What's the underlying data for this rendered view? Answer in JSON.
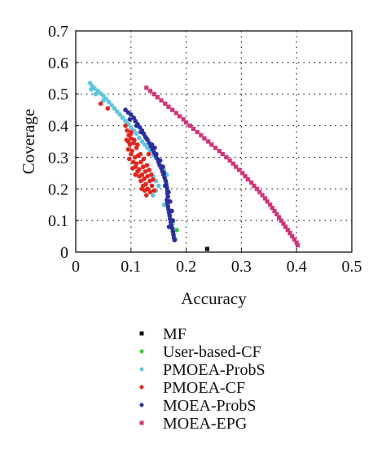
{
  "chart_data": {
    "type": "scatter",
    "title": "",
    "xlabel": "Accuracy",
    "ylabel": "Coverage",
    "xlim": [
      0,
      0.5
    ],
    "ylim": [
      0,
      0.7
    ],
    "xticks": [
      "0",
      "0.1",
      "0.2",
      "0.3",
      "0.4",
      "0.5"
    ],
    "yticks": [
      "0",
      "0.1",
      "0.2",
      "0.3",
      "0.4",
      "0.5",
      "0.6",
      "0.7"
    ],
    "grid": true,
    "legend_position": "bottom",
    "series": [
      {
        "name": "MF",
        "color": "#111111",
        "marker": "square",
        "points": [
          [
            0.238,
            0.01
          ]
        ]
      },
      {
        "name": "User-based-CF",
        "color": "#2ecc2e",
        "marker": "circle",
        "points": [
          [
            0.183,
            0.07
          ],
          [
            0.18,
            0.04
          ]
        ]
      },
      {
        "name": "PMOEA-ProbS",
        "color": "#5bc8e0",
        "marker": "circle",
        "points": [
          [
            0.026,
            0.535
          ],
          [
            0.03,
            0.525
          ],
          [
            0.034,
            0.518
          ],
          [
            0.04,
            0.51
          ],
          [
            0.045,
            0.502
          ],
          [
            0.05,
            0.495
          ],
          [
            0.055,
            0.485
          ],
          [
            0.06,
            0.475
          ],
          [
            0.065,
            0.465
          ],
          [
            0.07,
            0.455
          ],
          [
            0.075,
            0.445
          ],
          [
            0.08,
            0.435
          ],
          [
            0.085,
            0.425
          ],
          [
            0.09,
            0.415
          ],
          [
            0.095,
            0.405
          ],
          [
            0.1,
            0.395
          ],
          [
            0.105,
            0.385
          ],
          [
            0.11,
            0.375
          ],
          [
            0.115,
            0.362
          ],
          [
            0.12,
            0.35
          ],
          [
            0.125,
            0.34
          ],
          [
            0.13,
            0.33
          ],
          [
            0.135,
            0.32
          ],
          [
            0.14,
            0.308
          ],
          [
            0.145,
            0.298
          ],
          [
            0.15,
            0.285
          ],
          [
            0.155,
            0.272
          ],
          [
            0.16,
            0.26
          ],
          [
            0.165,
            0.245
          ],
          [
            0.14,
            0.24
          ],
          [
            0.145,
            0.225
          ],
          [
            0.15,
            0.21
          ],
          [
            0.145,
            0.195
          ],
          [
            0.14,
            0.18
          ],
          [
            0.16,
            0.15
          ],
          [
            0.17,
            0.12
          ],
          [
            0.175,
            0.09
          ],
          [
            0.028,
            0.515
          ],
          [
            0.036,
            0.5
          ],
          [
            0.05,
            0.48
          ]
        ]
      },
      {
        "name": "PMOEA-CF",
        "color": "#e8231c",
        "marker": "circle",
        "points": [
          [
            0.045,
            0.47
          ],
          [
            0.058,
            0.455
          ],
          [
            0.09,
            0.4
          ],
          [
            0.093,
            0.385
          ],
          [
            0.096,
            0.37
          ],
          [
            0.092,
            0.355
          ],
          [
            0.1,
            0.36
          ],
          [
            0.098,
            0.34
          ],
          [
            0.105,
            0.345
          ],
          [
            0.095,
            0.325
          ],
          [
            0.102,
            0.32
          ],
          [
            0.11,
            0.33
          ],
          [
            0.1,
            0.31
          ],
          [
            0.107,
            0.3
          ],
          [
            0.113,
            0.305
          ],
          [
            0.104,
            0.285
          ],
          [
            0.11,
            0.28
          ],
          [
            0.118,
            0.285
          ],
          [
            0.108,
            0.27
          ],
          [
            0.115,
            0.262
          ],
          [
            0.122,
            0.27
          ],
          [
            0.112,
            0.255
          ],
          [
            0.12,
            0.245
          ],
          [
            0.126,
            0.255
          ],
          [
            0.115,
            0.24
          ],
          [
            0.124,
            0.232
          ],
          [
            0.13,
            0.24
          ],
          [
            0.118,
            0.225
          ],
          [
            0.127,
            0.215
          ],
          [
            0.134,
            0.225
          ],
          [
            0.122,
            0.21
          ],
          [
            0.13,
            0.2
          ],
          [
            0.138,
            0.21
          ],
          [
            0.125,
            0.195
          ],
          [
            0.135,
            0.19
          ],
          [
            0.142,
            0.195
          ],
          [
            0.128,
            0.18
          ],
          [
            0.095,
            0.35
          ],
          [
            0.1,
            0.375
          ],
          [
            0.106,
            0.355
          ],
          [
            0.112,
            0.34
          ],
          [
            0.117,
            0.31
          ],
          [
            0.123,
            0.295
          ],
          [
            0.129,
            0.275
          ],
          [
            0.133,
            0.26
          ],
          [
            0.137,
            0.245
          ],
          [
            0.097,
            0.295
          ],
          [
            0.103,
            0.265
          ],
          [
            0.14,
            0.23
          ],
          [
            0.12,
            0.2
          ],
          [
            0.108,
            0.245
          ],
          [
            0.132,
            0.31
          ],
          [
            0.1,
            0.38
          ]
        ]
      },
      {
        "name": "MOEA-ProbS",
        "color": "#2a2fa0",
        "marker": "circle",
        "points": [
          [
            0.09,
            0.45
          ],
          [
            0.095,
            0.442
          ],
          [
            0.1,
            0.435
          ],
          [
            0.105,
            0.425
          ],
          [
            0.108,
            0.415
          ],
          [
            0.112,
            0.405
          ],
          [
            0.116,
            0.395
          ],
          [
            0.12,
            0.385
          ],
          [
            0.123,
            0.375
          ],
          [
            0.126,
            0.365
          ],
          [
            0.13,
            0.355
          ],
          [
            0.133,
            0.345
          ],
          [
            0.136,
            0.335
          ],
          [
            0.139,
            0.325
          ],
          [
            0.142,
            0.315
          ],
          [
            0.145,
            0.305
          ],
          [
            0.148,
            0.295
          ],
          [
            0.15,
            0.285
          ],
          [
            0.152,
            0.275
          ],
          [
            0.155,
            0.265
          ],
          [
            0.157,
            0.255
          ],
          [
            0.159,
            0.245
          ],
          [
            0.161,
            0.235
          ],
          [
            0.163,
            0.225
          ],
          [
            0.164,
            0.215
          ],
          [
            0.165,
            0.205
          ],
          [
            0.166,
            0.195
          ],
          [
            0.166,
            0.185
          ],
          [
            0.167,
            0.175
          ],
          [
            0.165,
            0.165
          ],
          [
            0.166,
            0.155
          ],
          [
            0.167,
            0.145
          ],
          [
            0.168,
            0.135
          ],
          [
            0.169,
            0.125
          ],
          [
            0.17,
            0.115
          ],
          [
            0.171,
            0.105
          ],
          [
            0.172,
            0.095
          ],
          [
            0.173,
            0.085
          ],
          [
            0.175,
            0.075
          ],
          [
            0.176,
            0.065
          ],
          [
            0.177,
            0.055
          ],
          [
            0.178,
            0.045
          ],
          [
            0.179,
            0.038
          ],
          [
            0.098,
            0.42
          ],
          [
            0.11,
            0.4
          ],
          [
            0.118,
            0.38
          ],
          [
            0.128,
            0.36
          ],
          [
            0.138,
            0.34
          ],
          [
            0.143,
            0.33
          ],
          [
            0.146,
            0.31
          ],
          [
            0.153,
            0.29
          ],
          [
            0.158,
            0.27
          ],
          [
            0.16,
            0.25
          ],
          [
            0.162,
            0.21
          ],
          [
            0.168,
            0.19
          ],
          [
            0.171,
            0.16
          ],
          [
            0.174,
            0.13
          ],
          [
            0.176,
            0.1
          ],
          [
            0.169,
            0.08
          ]
        ]
      },
      {
        "name": "MOEA-EPG",
        "color": "#d6317a",
        "marker": "square",
        "points": [
          [
            0.128,
            0.52
          ],
          [
            0.135,
            0.51
          ],
          [
            0.142,
            0.5
          ],
          [
            0.148,
            0.49
          ],
          [
            0.155,
            0.48
          ],
          [
            0.162,
            0.47
          ],
          [
            0.168,
            0.46
          ],
          [
            0.175,
            0.45
          ],
          [
            0.182,
            0.44
          ],
          [
            0.188,
            0.43
          ],
          [
            0.195,
            0.42
          ],
          [
            0.2,
            0.41
          ],
          [
            0.207,
            0.4
          ],
          [
            0.213,
            0.39
          ],
          [
            0.22,
            0.38
          ],
          [
            0.227,
            0.37
          ],
          [
            0.233,
            0.36
          ],
          [
            0.24,
            0.35
          ],
          [
            0.246,
            0.34
          ],
          [
            0.253,
            0.33
          ],
          [
            0.26,
            0.32
          ],
          [
            0.266,
            0.31
          ],
          [
            0.273,
            0.3
          ],
          [
            0.279,
            0.29
          ],
          [
            0.285,
            0.28
          ],
          [
            0.29,
            0.27
          ],
          [
            0.296,
            0.26
          ],
          [
            0.302,
            0.25
          ],
          [
            0.307,
            0.24
          ],
          [
            0.312,
            0.23
          ],
          [
            0.318,
            0.22
          ],
          [
            0.323,
            0.21
          ],
          [
            0.328,
            0.2
          ],
          [
            0.333,
            0.19
          ],
          [
            0.338,
            0.18
          ],
          [
            0.343,
            0.17
          ],
          [
            0.347,
            0.16
          ],
          [
            0.352,
            0.15
          ],
          [
            0.356,
            0.14
          ],
          [
            0.36,
            0.13
          ],
          [
            0.364,
            0.12
          ],
          [
            0.368,
            0.11
          ],
          [
            0.372,
            0.1
          ],
          [
            0.376,
            0.09
          ],
          [
            0.38,
            0.08
          ],
          [
            0.384,
            0.07
          ],
          [
            0.388,
            0.06
          ],
          [
            0.392,
            0.05
          ],
          [
            0.396,
            0.04
          ],
          [
            0.4,
            0.03
          ],
          [
            0.402,
            0.022
          ]
        ]
      }
    ]
  }
}
